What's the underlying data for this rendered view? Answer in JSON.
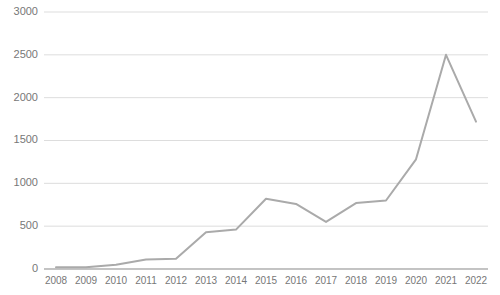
{
  "chart_data": {
    "type": "line",
    "x": [
      2008,
      2009,
      2010,
      2011,
      2012,
      2013,
      2014,
      2015,
      2016,
      2017,
      2018,
      2019,
      2020,
      2021,
      2022
    ],
    "values": [
      20,
      20,
      50,
      110,
      120,
      430,
      460,
      820,
      760,
      550,
      770,
      800,
      1280,
      2500,
      1720
    ],
    "color": "#aaaaaa",
    "xlim": [
      2007.6,
      2022.4
    ],
    "xticks": [
      2008,
      2009,
      2010,
      2011,
      2012,
      2013,
      2014,
      2015,
      2016,
      2017,
      2018,
      2019,
      2020,
      2021,
      2022
    ],
    "ylim": [
      0,
      3000
    ],
    "yticks": [
      0,
      500,
      1000,
      1500,
      2000,
      2500,
      3000
    ],
    "grid": true
  }
}
